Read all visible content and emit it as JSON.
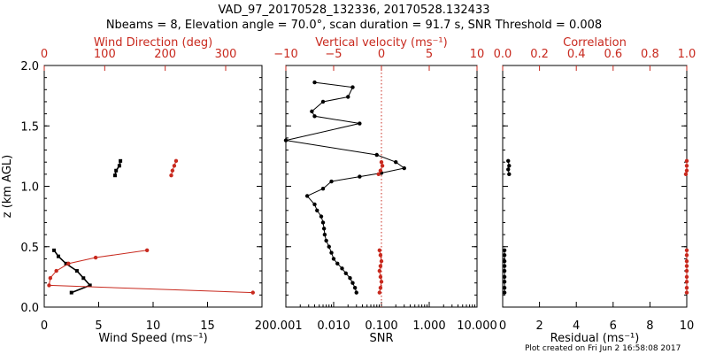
{
  "figure": {
    "title_line1": "VAD_97_20170528_132336, 20170528.132433",
    "title_line2": "Nbeams = 8, Elevation angle = 70.0°, scan duration = 91.7 s, SNR Threshold = 0.008",
    "footer": "Plot created on Fri Jun  2 16:58:08 2017",
    "colors": {
      "primary": "#000000",
      "secondary": "#c8291e"
    }
  },
  "chart_data": [
    {
      "type": "line",
      "ylabel": "z (km AGL)",
      "ylim": [
        0,
        2
      ],
      "yticks": [
        "0.0",
        "0.5",
        "1.0",
        "1.5",
        "2.0"
      ],
      "bottom_axis": {
        "label": "Wind Speed (ms⁻¹)",
        "range": [
          0,
          20
        ],
        "ticks": [
          "0",
          "5",
          "10",
          "15",
          "20"
        ]
      },
      "top_axis": {
        "label": "Wind Direction (deg)",
        "range": [
          0,
          360
        ],
        "ticks": [
          "0",
          "100",
          "200",
          "300"
        ]
      },
      "series": [
        {
          "color": "#000000",
          "axis": "bottom",
          "marker": "square",
          "segments": [
            {
              "x": [
                6.5,
                6.6,
                6.9,
                7.0
              ],
              "y": [
                1.09,
                1.13,
                1.17,
                1.21
              ]
            },
            {
              "x": [
                2.5,
                4.2,
                3.6,
                3.0,
                2.0,
                1.3,
                0.9
              ],
              "y": [
                0.12,
                0.18,
                0.24,
                0.3,
                0.36,
                0.42,
                0.47
              ]
            }
          ]
        },
        {
          "color": "#c8291e",
          "axis": "top",
          "marker": "circle",
          "segments": [
            {
              "x": [
                210,
                212,
                215,
                218
              ],
              "y": [
                1.09,
                1.13,
                1.17,
                1.21
              ]
            },
            {
              "x": [
                345,
                8,
                10,
                20,
                40,
                85,
                170
              ],
              "y": [
                0.12,
                0.18,
                0.24,
                0.3,
                0.36,
                0.41,
                0.47
              ]
            }
          ]
        }
      ]
    },
    {
      "type": "line",
      "ylim": [
        0,
        2
      ],
      "bottom_axis": {
        "label": "SNR",
        "scale": "log",
        "range": [
          0.001,
          10
        ],
        "ticks": [
          "0.001",
          "0.010",
          "0.100",
          "1.000",
          "10.000"
        ]
      },
      "top_axis": {
        "label": "Vertical velocity (ms⁻¹)",
        "range": [
          -10,
          10
        ],
        "ticks": [
          "−10",
          "−5",
          "0",
          "5",
          "10"
        ]
      },
      "reference_line": {
        "axis": "top",
        "x": 0,
        "style": "dotted"
      },
      "series": [
        {
          "color": "#000000",
          "axis": "bottom",
          "marker": "circle",
          "segments": [
            {
              "x": [
                0.03,
                0.028,
                0.025,
                0.022,
                0.018,
                0.015,
                0.012,
                0.01,
                0.009,
                0.008,
                0.007,
                0.0065,
                0.0063,
                0.006,
                0.0055,
                0.0045,
                0.004,
                0.0028,
                0.006,
                0.009,
                0.035,
                0.1,
                0.3,
                0.2,
                0.08,
                0.001,
                0.035,
                0.004,
                0.0035,
                0.006,
                0.02,
                0.025,
                0.004
              ],
              "y": [
                0.12,
                0.16,
                0.2,
                0.24,
                0.28,
                0.32,
                0.36,
                0.4,
                0.45,
                0.5,
                0.55,
                0.6,
                0.65,
                0.7,
                0.75,
                0.8,
                0.85,
                0.92,
                0.98,
                1.04,
                1.08,
                1.11,
                1.15,
                1.2,
                1.26,
                1.38,
                1.52,
                1.58,
                1.62,
                1.7,
                1.74,
                1.82,
                1.86
              ]
            }
          ]
        },
        {
          "color": "#c8291e",
          "axis": "top",
          "marker": "circle",
          "segments": [
            {
              "x": [
                -0.3,
                -0.1,
                0.1,
                0.0
              ],
              "y": [
                1.1,
                1.13,
                1.17,
                1.2
              ]
            },
            {
              "x": [
                -0.2,
                -0.1,
                0.0,
                -0.1,
                -0.2,
                -0.1,
                0.0,
                -0.1,
                -0.2
              ],
              "y": [
                0.12,
                0.16,
                0.21,
                0.25,
                0.3,
                0.34,
                0.38,
                0.43,
                0.47
              ]
            }
          ]
        }
      ]
    },
    {
      "type": "line",
      "ylim": [
        0,
        2
      ],
      "bottom_axis": {
        "label": "Residual (ms⁻¹)",
        "range": [
          0,
          10
        ],
        "ticks": [
          "0",
          "2",
          "4",
          "6",
          "8",
          "10"
        ]
      },
      "top_axis": {
        "label": "Correlation",
        "range": [
          0,
          1
        ],
        "ticks": [
          "0.0",
          "0.2",
          "0.4",
          "0.6",
          "0.8",
          "1.0"
        ]
      },
      "series": [
        {
          "color": "#000000",
          "axis": "bottom",
          "marker": "circle",
          "segments": [
            {
              "x": [
                0.35,
                0.3,
                0.35,
                0.3
              ],
              "y": [
                1.1,
                1.14,
                1.17,
                1.21
              ]
            },
            {
              "x": [
                0.1,
                0.1,
                0.1,
                0.1,
                0.1,
                0.1,
                0.1,
                0.1,
                0.1
              ],
              "y": [
                0.12,
                0.16,
                0.21,
                0.25,
                0.3,
                0.34,
                0.38,
                0.43,
                0.47
              ]
            }
          ]
        },
        {
          "color": "#c8291e",
          "axis": "top",
          "marker": "circle",
          "segments": [
            {
              "x": [
                0.995,
                1.0,
                1.0,
                1.0
              ],
              "y": [
                1.1,
                1.13,
                1.17,
                1.21
              ]
            },
            {
              "x": [
                1.0,
                1.0,
                1.0,
                1.0,
                1.0,
                1.0,
                1.0,
                1.0,
                1.0
              ],
              "y": [
                0.12,
                0.16,
                0.21,
                0.25,
                0.3,
                0.34,
                0.38,
                0.43,
                0.47
              ]
            }
          ]
        }
      ]
    }
  ]
}
